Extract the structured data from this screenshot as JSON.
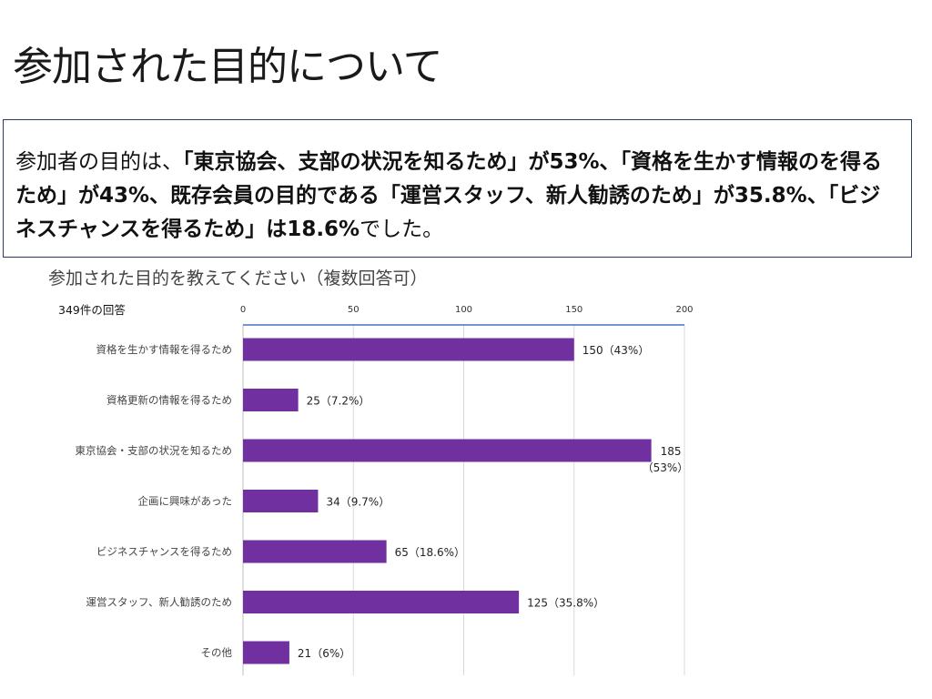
{
  "slide": {
    "title": "参加された目的について",
    "summary": {
      "part1": "参加者の目的は、",
      "bold1": "「東京協会、支部の状況を知るため」が53%、「資格を生かす情報のを得るため」が43%、既存会員の目的である「運営スタッフ、新人勧誘のため」が35.8%、「ビジネスチャンスを得るため」は18.6%",
      "part2": "でした。"
    },
    "subtitle": "参加された目的を教えてください（複数回答可）",
    "response_count": "349件の回答"
  },
  "chart_data": {
    "type": "bar",
    "orientation": "horizontal",
    "categories": [
      "資格を生かす情報を得るため",
      "資格更新の情報を得るため",
      "東京協会・支部の状況を知るため",
      "企画に興味があった",
      "ビジネスチャンスを得るため",
      "運営スタッフ、新人勧誘のため",
      "その他"
    ],
    "values": [
      150,
      25,
      185,
      34,
      65,
      125,
      21
    ],
    "data_labels": [
      "150（43%）",
      "25（7.2%）",
      "185\n（53%）",
      "34（9.7%）",
      "65（18.6%）",
      "125（35.8%）",
      "21（6%）"
    ],
    "xlim": [
      0,
      200
    ],
    "x_ticks": [
      "0",
      "50",
      "100",
      "150",
      "200"
    ],
    "x_tick_values": [
      0,
      50,
      100,
      150,
      200
    ],
    "grid": true,
    "axis_position": "top",
    "bar_color": "#7030a0",
    "axis_color": "#4472c4",
    "grid_color": "#d9d9d9"
  }
}
